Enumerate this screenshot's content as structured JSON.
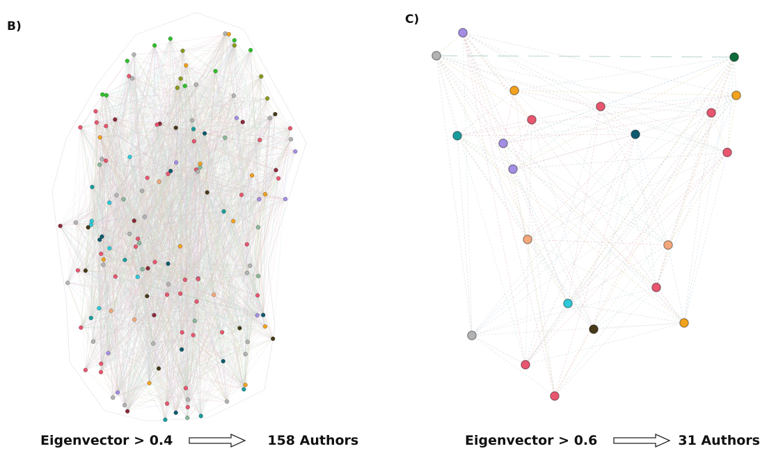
{
  "panels": {
    "b": {
      "label": "B)",
      "metric": "Eigenvector > 0.4",
      "count": "158 Authors"
    },
    "c": {
      "label": "C)",
      "metric": "Eigenvector > 0.6",
      "count": "31 Authors"
    }
  },
  "colors": {
    "pink": "#e8566f",
    "grey": "#b3b3b3",
    "purple": "#a38ee3",
    "cyan": "#2ec8d8",
    "teal": "#1a9c9c",
    "orange": "#f2a21e",
    "salmon": "#f4a77a",
    "green": "#2fc02a",
    "olive": "#8a9a1a",
    "darkgreen": "#0e6a3a",
    "darkteal": "#0e5a6e",
    "darkbrown": "#463a1a",
    "maroon": "#8b2a3a",
    "sage": "#8ab89a"
  }
}
